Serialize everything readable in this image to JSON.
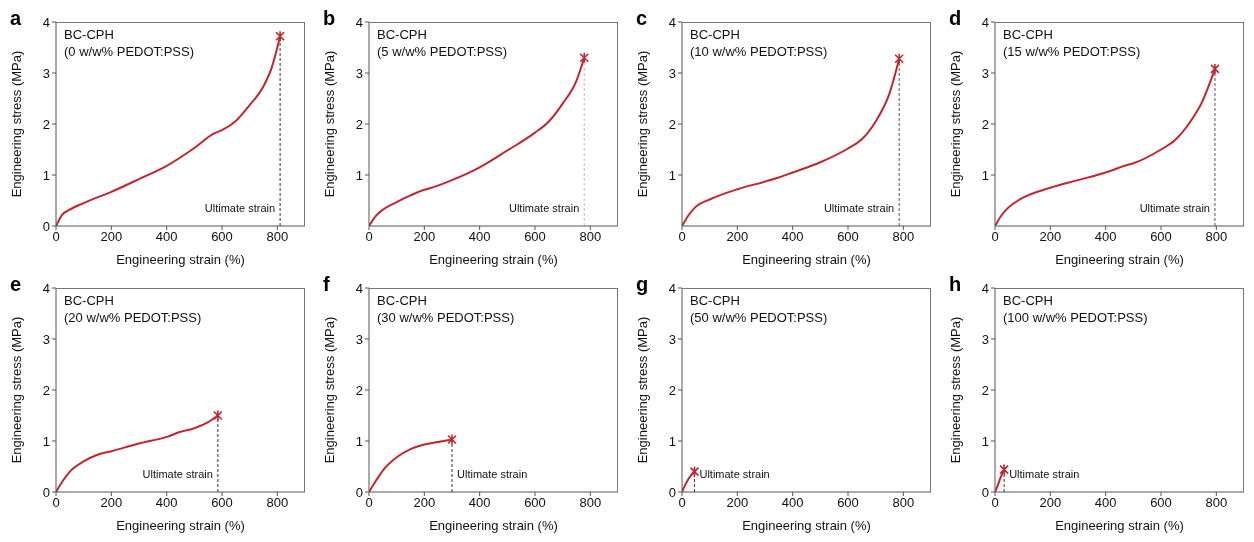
{
  "chart_data": [
    {
      "type": "line",
      "title": "a",
      "xlabel": "Engineering strain (%)",
      "ylabel": "Engineering stress (MPa)",
      "annotations": [
        "BC-CPH",
        "(0 w/w% PEDOT:PSS)"
      ],
      "xlim": [
        0,
        900
      ],
      "ylim": [
        0,
        4
      ],
      "xticks": [
        0,
        200,
        400,
        600,
        800
      ],
      "yticks": [
        0,
        1,
        2,
        3,
        4
      ],
      "series": [
        {
          "type": "line",
          "color": "#c0272d",
          "x": [
            0,
            22,
            46,
            100,
            200,
            300,
            400,
            500,
            570,
            600,
            650,
            700,
            750,
            780,
            810
          ],
          "values": [
            0,
            0.22,
            0.31,
            0.45,
            0.67,
            0.92,
            1.18,
            1.53,
            1.81,
            1.88,
            2.06,
            2.37,
            2.74,
            3.11,
            3.72
          ]
        },
        {
          "type": "scatter",
          "marker": "cross",
          "color": "#c0272d",
          "x": [
            810
          ],
          "values": [
            3.72
          ]
        }
      ],
      "ref_lines": [
        {
          "axis": "x",
          "value": 810,
          "label": "Ultimate strain",
          "color": "#333333",
          "line_style": "dashed"
        }
      ]
    },
    {
      "type": "line",
      "title": "b",
      "xlabel": "Engineering strain (%)",
      "ylabel": "Engineering stress (MPa)",
      "annotations": [
        "BC-CPH",
        "(5 w/w% PEDOT:PSS)"
      ],
      "xlim": [
        0,
        900
      ],
      "ylim": [
        0,
        4
      ],
      "xticks": [
        0,
        200,
        400,
        600,
        800
      ],
      "yticks": [
        1,
        2,
        3,
        4
      ],
      "series": [
        {
          "type": "line",
          "color": "#c0272d",
          "x": [
            0,
            25,
            50,
            100,
            150,
            200,
            220,
            300,
            400,
            500,
            600,
            650,
            700,
            750,
            778
          ],
          "values": [
            0,
            0.2,
            0.32,
            0.47,
            0.6,
            0.71,
            0.74,
            0.9,
            1.15,
            1.48,
            1.83,
            2.05,
            2.4,
            2.85,
            3.3
          ]
        },
        {
          "type": "scatter",
          "marker": "cross",
          "color": "#c0272d",
          "x": [
            778
          ],
          "values": [
            3.3
          ]
        }
      ],
      "ref_lines": [
        {
          "axis": "x",
          "value": 778,
          "label": "Ultimate strain",
          "color": "#bbbbbb",
          "line_style": "dashed"
        }
      ]
    },
    {
      "type": "line",
      "title": "c",
      "xlabel": "Engineering strain (%)",
      "ylabel": "Engineering stress (MPa)",
      "annotations": [
        "BC-CPH",
        "(10 w/w% PEDOT:PSS)"
      ],
      "xlim": [
        0,
        900
      ],
      "ylim": [
        0,
        4
      ],
      "xticks": [
        0,
        200,
        400,
        600,
        800
      ],
      "yticks": [
        1,
        2,
        3,
        4
      ],
      "series": [
        {
          "type": "line",
          "color": "#c0272d",
          "x": [
            0,
            25,
            50,
            100,
            200,
            300,
            350,
            400,
            500,
            600,
            650,
            700,
            750,
            785
          ],
          "values": [
            0,
            0.22,
            0.38,
            0.52,
            0.72,
            0.87,
            0.95,
            1.05,
            1.25,
            1.52,
            1.7,
            2.05,
            2.6,
            3.28
          ]
        },
        {
          "type": "scatter",
          "marker": "cross",
          "color": "#c0272d",
          "x": [
            785
          ],
          "values": [
            3.28
          ]
        }
      ],
      "ref_lines": [
        {
          "axis": "x",
          "value": 785,
          "label": "Ultimate strain",
          "color": "#555555",
          "line_style": "dashed"
        }
      ]
    },
    {
      "type": "line",
      "title": "d",
      "xlabel": "Engineering strain (%)",
      "ylabel": "Engineering stress (MPa)",
      "annotations": [
        "BC-CPH",
        "(15 w/w% PEDOT:PSS)"
      ],
      "xlim": [
        0,
        900
      ],
      "ylim": [
        0,
        4
      ],
      "xticks": [
        0,
        200,
        400,
        600,
        800
      ],
      "yticks": [
        1,
        2,
        3,
        4
      ],
      "series": [
        {
          "type": "line",
          "color": "#c0272d",
          "x": [
            0,
            25,
            50,
            100,
            200,
            300,
            400,
            480,
            500,
            600,
            650,
            700,
            750,
            795
          ],
          "values": [
            0,
            0.22,
            0.37,
            0.55,
            0.75,
            0.9,
            1.05,
            1.2,
            1.23,
            1.5,
            1.68,
            2.0,
            2.45,
            3.08
          ]
        },
        {
          "type": "scatter",
          "marker": "cross",
          "color": "#c0272d",
          "x": [
            795
          ],
          "values": [
            3.08
          ]
        }
      ],
      "ref_lines": [
        {
          "axis": "x",
          "value": 795,
          "label": "Ultimate strain",
          "color": "#555555",
          "line_style": "dashed"
        }
      ]
    },
    {
      "type": "line",
      "title": "e",
      "xlabel": "Engineering strain (%)",
      "ylabel": "Engineering stress (MPa)",
      "annotations": [
        "BC-CPH",
        "(20 w/w% PEDOT:PSS)"
      ],
      "xlim": [
        0,
        900
      ],
      "ylim": [
        0,
        4
      ],
      "xticks": [
        0,
        200,
        400,
        600,
        800
      ],
      "yticks": [
        0,
        1,
        2,
        3,
        4
      ],
      "series": [
        {
          "type": "line",
          "color": "#c0272d",
          "x": [
            0,
            25,
            50,
            100,
            150,
            200,
            300,
            400,
            450,
            500,
            550,
            585
          ],
          "values": [
            0,
            0.22,
            0.4,
            0.6,
            0.73,
            0.8,
            0.95,
            1.08,
            1.18,
            1.25,
            1.37,
            1.5
          ]
        },
        {
          "type": "scatter",
          "marker": "cross",
          "color": "#c0272d",
          "x": [
            585
          ],
          "values": [
            1.5
          ]
        }
      ],
      "ref_lines": [
        {
          "axis": "x",
          "value": 585,
          "label": "Ultimate strain",
          "color": "#333333",
          "line_style": "dashed"
        }
      ]
    },
    {
      "type": "line",
      "title": "f",
      "xlabel": "Engineering strain (%)",
      "ylabel": "Engineering stress (MPa)",
      "annotations": [
        "BC-CPH",
        "(30 w/w% PEDOT:PSS)"
      ],
      "xlim": [
        0,
        900
      ],
      "ylim": [
        0,
        4
      ],
      "xticks": [
        0,
        200,
        400,
        600,
        800
      ],
      "yticks": [
        0,
        1,
        2,
        3,
        4
      ],
      "series": [
        {
          "type": "line",
          "color": "#c0272d",
          "x": [
            0,
            25,
            50,
            100,
            150,
            200,
            250,
            300
          ],
          "values": [
            0,
            0.22,
            0.42,
            0.68,
            0.84,
            0.93,
            0.98,
            1.03
          ]
        },
        {
          "type": "scatter",
          "marker": "cross",
          "color": "#c0272d",
          "x": [
            300
          ],
          "values": [
            1.03
          ]
        }
      ],
      "ref_lines": [
        {
          "axis": "x",
          "value": 300,
          "label": "Ultimate strain",
          "color": "#333333",
          "line_style": "dashed"
        }
      ]
    },
    {
      "type": "line",
      "title": "g",
      "xlabel": "Engineering strain (%)",
      "ylabel": "Engineering stress (MPa)",
      "annotations": [
        "BC-CPH",
        "(50 w/w% PEDOT:PSS)"
      ],
      "xlim": [
        0,
        900
      ],
      "ylim": [
        0,
        4
      ],
      "xticks": [
        0,
        200,
        400,
        600,
        800
      ],
      "yticks": [
        0,
        1,
        2,
        3,
        4
      ],
      "series": [
        {
          "type": "line",
          "color": "#c0272d",
          "x": [
            0,
            10,
            25,
            45
          ],
          "values": [
            0,
            0.12,
            0.27,
            0.4
          ]
        },
        {
          "type": "scatter",
          "marker": "cross",
          "color": "#c0272d",
          "x": [
            45
          ],
          "values": [
            0.4
          ]
        }
      ],
      "ref_lines": [
        {
          "axis": "x",
          "value": 45,
          "label": "Ultimate strain",
          "color": "#333333",
          "line_style": "dashed"
        }
      ]
    },
    {
      "type": "line",
      "title": "h",
      "xlabel": "Engineering strain (%)",
      "ylabel": "Engineering stress (MPa)",
      "annotations": [
        "BC-CPH",
        "(100 w/w% PEDOT:PSS)"
      ],
      "xlim": [
        0,
        900
      ],
      "ylim": [
        0,
        4
      ],
      "xticks": [
        0,
        200,
        400,
        600,
        800
      ],
      "yticks": [
        0,
        1,
        2,
        3,
        4
      ],
      "series": [
        {
          "type": "line",
          "color": "#c0272d",
          "x": [
            0,
            10,
            20,
            33
          ],
          "values": [
            0,
            0.13,
            0.28,
            0.44
          ]
        },
        {
          "type": "scatter",
          "marker": "cross",
          "color": "#c0272d",
          "x": [
            33
          ],
          "values": [
            0.44
          ]
        }
      ],
      "ref_lines": [
        {
          "axis": "x",
          "value": 33,
          "label": "Ultimate strain",
          "color": "#333333",
          "line_style": "dashed"
        }
      ]
    }
  ]
}
